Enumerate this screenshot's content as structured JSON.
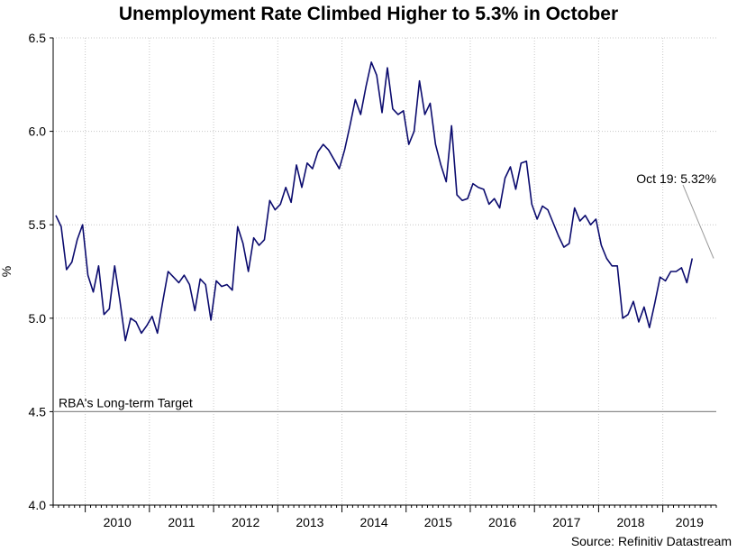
{
  "chart_data": {
    "type": "line",
    "title": "Unemployment Rate Climbed Higher to 5.3% in October",
    "ylabel": "%",
    "xlabel": "",
    "source": "Source: Refinitiv Datastream",
    "ylim": [
      4.0,
      6.5
    ],
    "yticks": [
      "4.0",
      "4.5",
      "5.0",
      "5.5",
      "6.0",
      "6.5"
    ],
    "x_start": "2009-07",
    "x_end": "2019-10",
    "year_labels": [
      "2010",
      "2011",
      "2012",
      "2013",
      "2014",
      "2015",
      "2016",
      "2017",
      "2018",
      "2019"
    ],
    "grid": true,
    "line_color": "#0b0b6e",
    "target": {
      "value": 4.5,
      "label": "RBA's Long-term Target",
      "color": "#8c8c8c"
    },
    "annotation": {
      "text": "Oct 19: 5.32%",
      "x": "2019-10",
      "y": 5.32
    },
    "series": [
      {
        "values": [
          5.55,
          5.49,
          5.26,
          5.3,
          5.42,
          5.5,
          5.23,
          5.14,
          5.28,
          5.02,
          5.05,
          5.28,
          5.09,
          4.88,
          5.0,
          4.98,
          4.92,
          4.96,
          5.01,
          4.92,
          5.09,
          5.25,
          5.22,
          5.19,
          5.23,
          5.18,
          5.04,
          5.21,
          5.18,
          4.99,
          5.2,
          5.17,
          5.18,
          5.15,
          5.49,
          5.4,
          5.25,
          5.43,
          5.39,
          5.42,
          5.63,
          5.58,
          5.61,
          5.7,
          5.62,
          5.82,
          5.7,
          5.83,
          5.8,
          5.89,
          5.93,
          5.9,
          5.85,
          5.8,
          5.9,
          6.03,
          6.17,
          6.09,
          6.24,
          6.37,
          6.3,
          6.1,
          6.34,
          6.12,
          6.09,
          6.11,
          5.93,
          6.0,
          6.27,
          6.09,
          6.15,
          5.93,
          5.82,
          5.73,
          6.03,
          5.66,
          5.63,
          5.64,
          5.72,
          5.7,
          5.69,
          5.61,
          5.64,
          5.59,
          5.75,
          5.81,
          5.69,
          5.83,
          5.84,
          5.61,
          5.53,
          5.6,
          5.58,
          5.51,
          5.44,
          5.38,
          5.4,
          5.59,
          5.52,
          5.55,
          5.5,
          5.53,
          5.39,
          5.32,
          5.28,
          5.28,
          5.0,
          5.02,
          5.09,
          4.98,
          5.06,
          4.95,
          5.08,
          5.22,
          5.2,
          5.25,
          5.25,
          5.27,
          5.19,
          5.32
        ]
      }
    ]
  }
}
